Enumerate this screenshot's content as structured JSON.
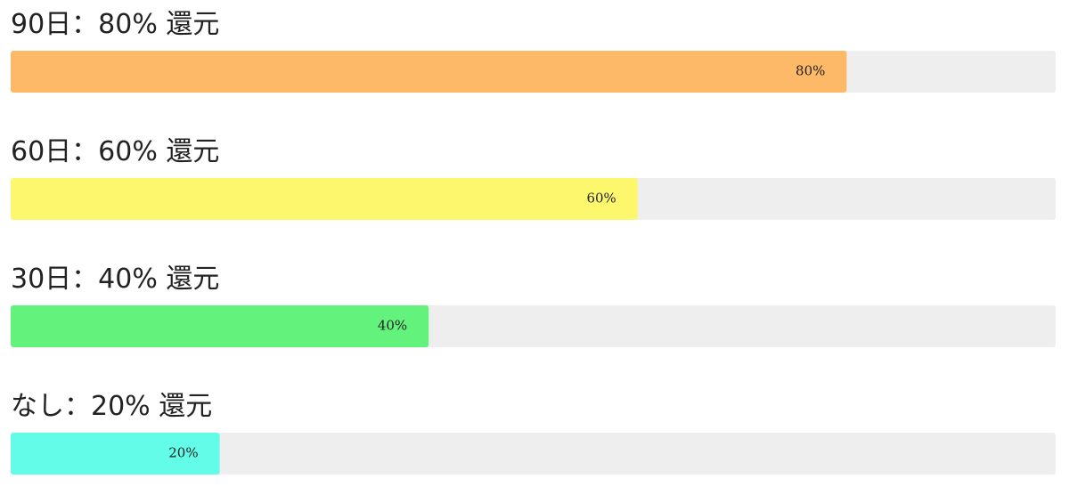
{
  "chart_data": {
    "type": "bar",
    "categories": [
      "90日：80% 還元",
      "60日：60% 還元",
      "30日：40% 還元",
      "なし：20% 還元"
    ],
    "values": [
      80,
      60,
      40,
      20
    ],
    "value_labels": [
      "80%",
      "60%",
      "40%",
      "20%"
    ],
    "colors": [
      "#fdb968",
      "#fdf76e",
      "#63f27c",
      "#62fce9"
    ],
    "xlim": [
      0,
      100
    ]
  }
}
